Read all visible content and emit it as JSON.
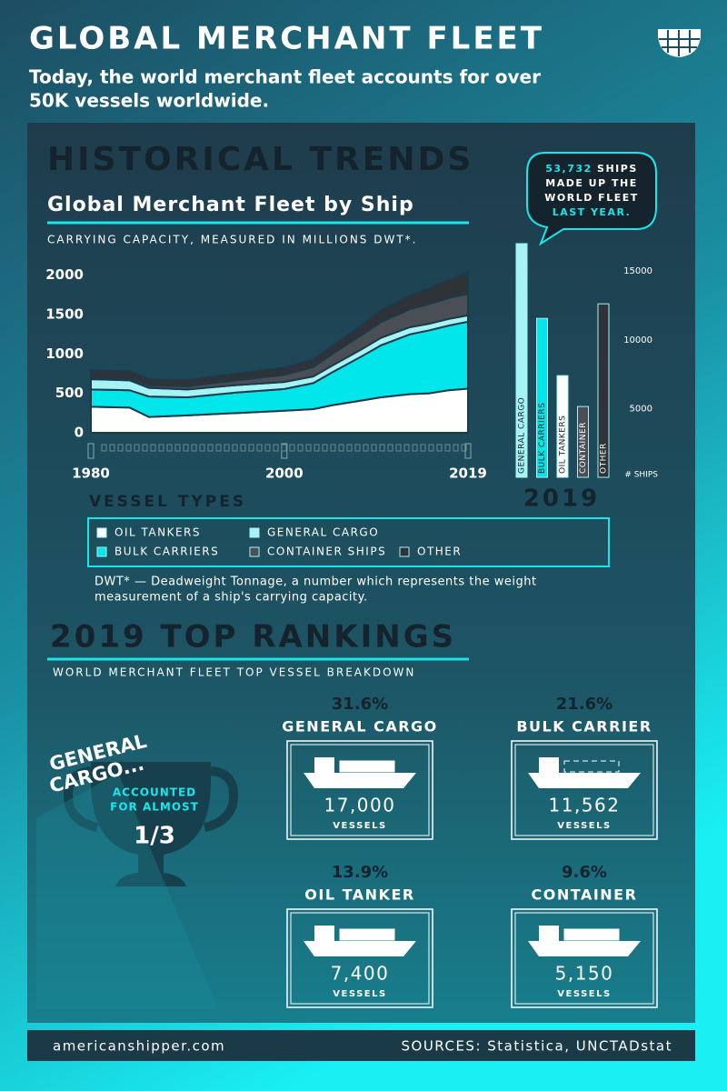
{
  "header": {
    "title": "GLOBAL MERCHANT FLEET",
    "subtitle": [
      "Today, the world merchant fleet accounts for over",
      "50K vessels worldwide."
    ]
  },
  "section_heading": "HISTORICAL TRENDS",
  "callout": {
    "number": "53,732",
    "line1": "SHIPS",
    "line2": "MADE UP THE",
    "line3": "WORLD FLEET",
    "line4": "LAST YEAR."
  },
  "chart_data": [
    {
      "type": "area",
      "stacked": true,
      "title": "Global Merchant Fleet by Ship",
      "subtitle": "CARRYING CAPACITY, MEASURED IN MILLIONS DWT*.",
      "x": [
        1980,
        1984,
        1986,
        1990,
        1995,
        2000,
        2003,
        2005,
        2008,
        2010,
        2013,
        2015,
        2017,
        2019
      ],
      "xlim": [
        1980,
        2019
      ],
      "xticks": [
        1980,
        2000,
        2019
      ],
      "ylim": [
        0,
        2100
      ],
      "yticks": [
        0,
        500,
        1000,
        1500,
        2000
      ],
      "legend_title": "VESSEL TYPES",
      "series": [
        {
          "name": "OIL TANKERS",
          "color": "#ffffff",
          "values": [
            330,
            320,
            200,
            220,
            250,
            280,
            300,
            350,
            410,
            450,
            490,
            500,
            540,
            560
          ]
        },
        {
          "name": "BULK CARRIERS",
          "color": "#00e6ea",
          "values": [
            220,
            220,
            260,
            230,
            260,
            275,
            330,
            420,
            560,
            660,
            760,
            800,
            820,
            850
          ]
        },
        {
          "name": "GENERAL CARGO",
          "color": "#a6f3f5",
          "values": [
            130,
            125,
            110,
            100,
            95,
            90,
            85,
            85,
            90,
            95,
            90,
            85,
            85,
            80
          ]
        },
        {
          "name": "CONTAINER SHIPS",
          "color": "#4a4f55",
          "values": [
            20,
            25,
            30,
            40,
            60,
            90,
            120,
            150,
            180,
            200,
            230,
            250,
            265,
            275
          ]
        },
        {
          "name": "OTHER",
          "color": "#2f3236",
          "values": [
            90,
            90,
            80,
            80,
            85,
            90,
            95,
            100,
            120,
            150,
            170,
            200,
            230,
            270
          ]
        }
      ],
      "footnote": [
        "DWT* — Deadweight Tonnage, a number which represents the weight",
        "measurement of a ship's carrying capacity."
      ]
    },
    {
      "type": "bar",
      "title": "2019",
      "y_label": "# SHIPS",
      "categories": [
        "GENERAL CARGO",
        "BULK CARRIERS",
        "OIL TANKERS",
        "CONTAINER",
        "OTHER"
      ],
      "values": [
        17000,
        11562,
        7400,
        5150,
        12620
      ],
      "colors": [
        "#a6f3f5",
        "#00e6ea",
        "#ffffff",
        "#4a4f55",
        "#2f3236"
      ],
      "ylim": [
        0,
        17000
      ],
      "yticks": [
        5000,
        10000,
        15000
      ]
    }
  ],
  "rankings": {
    "heading": "2019 TOP RANKINGS",
    "subheading": "WORLD MERCHANT FLEET TOP VESSEL BREAKDOWN",
    "trophy": {
      "line1": "GENERAL",
      "line2": "CARGO...",
      "line3": "ACCOUNTED",
      "line4": "FOR ALMOST",
      "fraction": "1/3"
    },
    "items": [
      {
        "percent": "31.6%",
        "name": "GENERAL CARGO",
        "count": "17,000",
        "unit": "VESSELS"
      },
      {
        "percent": "21.6%",
        "name": "BULK CARRIER",
        "count": "11,562",
        "unit": "VESSELS"
      },
      {
        "percent": "13.9%",
        "name": "OIL TANKER",
        "count": "7,400",
        "unit": "VESSELS"
      },
      {
        "percent": "9.6%",
        "name": "CONTAINER",
        "count": "5,150",
        "unit": "VESSELS"
      }
    ]
  },
  "footer": {
    "site": "americanshipper.com",
    "sources": "SOURCES: Statistica, UNCTADstat"
  }
}
